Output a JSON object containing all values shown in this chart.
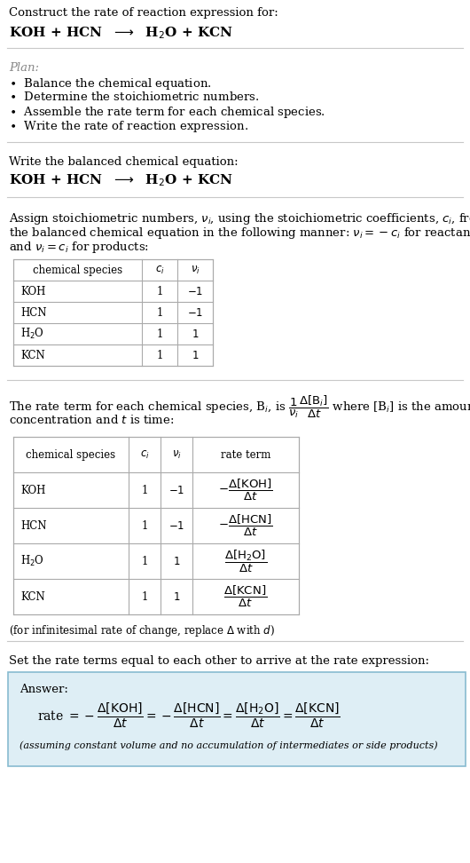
{
  "bg_color": "#ffffff",
  "text_color": "#000000",
  "gray_color": "#888888",
  "line_color": "#cccccc",
  "table_line_color": "#aaaaaa",
  "answer_box_color": "#deeef5",
  "answer_box_border": "#88bbd0",
  "title_line1": "Construct the rate of reaction expression for:",
  "title_line2": "KOH + HCN  $\\longrightarrow$  H$_2$O + KCN",
  "plan_header": "Plan:",
  "plan_items": [
    "$\\bullet$  Balance the chemical equation.",
    "$\\bullet$  Determine the stoichiometric numbers.",
    "$\\bullet$  Assemble the rate term for each chemical species.",
    "$\\bullet$  Write the rate of reaction expression."
  ],
  "balanced_header": "Write the balanced chemical equation:",
  "balanced_eq": "KOH + HCN  $\\longrightarrow$  H$_2$O + KCN",
  "stoich_para": [
    "Assign stoichiometric numbers, $\\nu_i$, using the stoichiometric coefficients, $c_i$, from",
    "the balanced chemical equation in the following manner: $\\nu_i = -c_i$ for reactants",
    "and $\\nu_i = c_i$ for products:"
  ],
  "table1_headers": [
    "chemical species",
    "$c_i$",
    "$\\nu_i$"
  ],
  "table1_rows": [
    [
      "KOH",
      "1",
      "$-1$"
    ],
    [
      "HCN",
      "1",
      "$-1$"
    ],
    [
      "H$_2$O",
      "1",
      "$1$"
    ],
    [
      "KCN",
      "1",
      "$1$"
    ]
  ],
  "rate_para": [
    "The rate term for each chemical species, B$_i$, is $\\dfrac{1}{\\nu_i}\\dfrac{\\Delta[\\mathrm{B}_i]}{\\Delta t}$ where [B$_i$] is the amount",
    "concentration and $t$ is time:"
  ],
  "table2_headers": [
    "chemical species",
    "$c_i$",
    "$\\nu_i$",
    "rate term"
  ],
  "table2_rows": [
    [
      "KOH",
      "1",
      "$-1$",
      "$-\\dfrac{\\Delta[\\mathrm{KOH}]}{\\Delta t}$"
    ],
    [
      "HCN",
      "1",
      "$-1$",
      "$-\\dfrac{\\Delta[\\mathrm{HCN}]}{\\Delta t}$"
    ],
    [
      "H$_2$O",
      "1",
      "$1$",
      "$\\dfrac{\\Delta[\\mathrm{H_2O}]}{\\Delta t}$"
    ],
    [
      "KCN",
      "1",
      "$1$",
      "$\\dfrac{\\Delta[\\mathrm{KCN}]}{\\Delta t}$"
    ]
  ],
  "infinitesimal_note": "(for infinitesimal rate of change, replace $\\Delta$ with $d$)",
  "set_equal_header": "Set the rate terms equal to each other to arrive at the rate expression:",
  "answer_label": "Answer:",
  "answer_eq": "rate $= -\\dfrac{\\Delta[\\mathrm{KOH}]}{\\Delta t} = -\\dfrac{\\Delta[\\mathrm{HCN}]}{\\Delta t} = \\dfrac{\\Delta[\\mathrm{H_2O}]}{\\Delta t} = \\dfrac{\\Delta[\\mathrm{KCN}]}{\\Delta t}$",
  "answer_note": "(assuming constant volume and no accumulation of intermediates or side products)"
}
